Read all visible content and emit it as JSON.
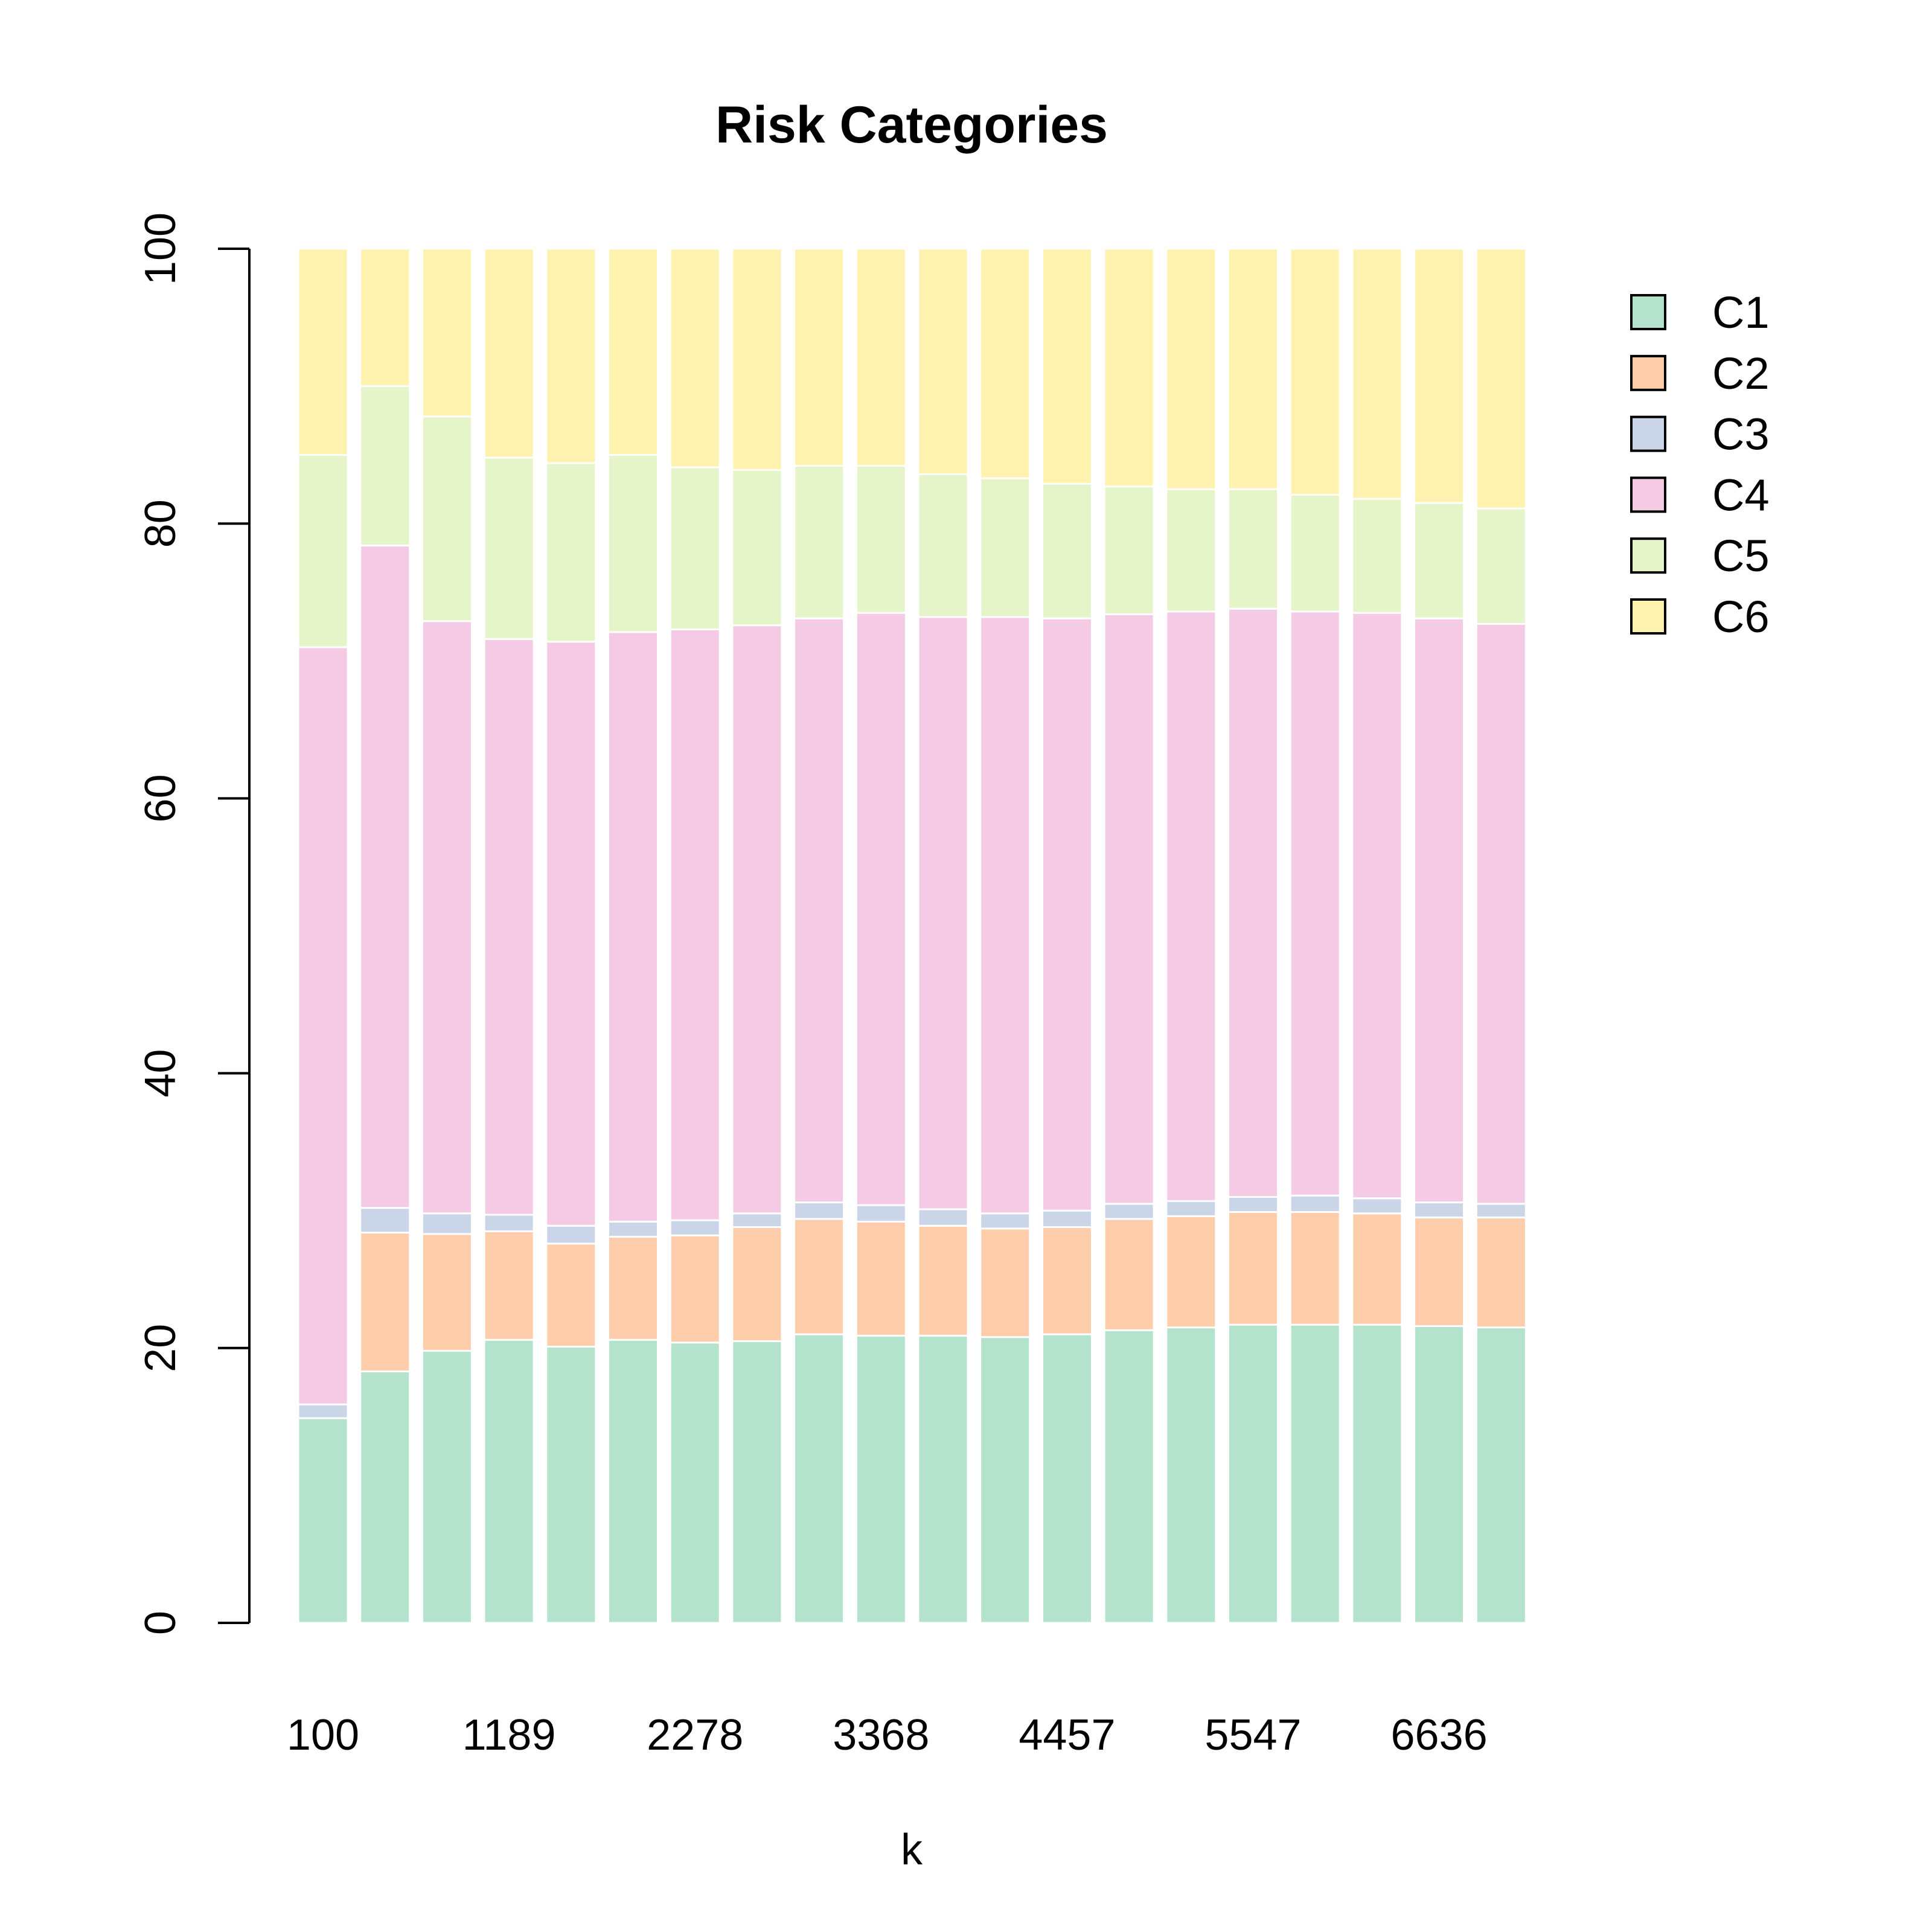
{
  "chart_data": {
    "type": "bar",
    "stacked": true,
    "title": "Risk Categories",
    "xlabel": "k",
    "ylabel": "",
    "ylim": [
      0,
      100
    ],
    "y_ticks": [
      "0",
      "20",
      "40",
      "60",
      "80",
      "100"
    ],
    "x_tick_labels": [
      "100",
      "1189",
      "2278",
      "3368",
      "4457",
      "5547",
      "6636"
    ],
    "x_tick_bar_index": [
      0,
      3,
      6,
      9,
      12,
      15,
      18
    ],
    "legend_position": "top-right",
    "series": [
      {
        "name": "C1",
        "color": "#B3E2CD",
        "values": [
          14.9,
          18.3,
          19.8,
          20.6,
          20.1,
          20.6,
          20.4,
          20.5,
          21.0,
          20.9,
          20.9,
          20.8,
          21.0,
          21.3,
          21.5,
          21.7,
          21.7,
          21.7,
          21.6,
          21.5
        ]
      },
      {
        "name": "C2",
        "color": "#FDCDAC",
        "values": [
          0.0,
          10.1,
          8.5,
          7.9,
          7.5,
          7.5,
          7.8,
          8.3,
          8.4,
          8.3,
          8.0,
          7.9,
          7.8,
          8.1,
          8.1,
          8.2,
          8.2,
          8.1,
          7.9,
          8.0
        ]
      },
      {
        "name": "C3",
        "color": "#CBD5E8",
        "values": [
          1.0,
          1.8,
          1.5,
          1.2,
          1.3,
          1.1,
          1.1,
          1.0,
          1.2,
          1.2,
          1.2,
          1.1,
          1.2,
          1.1,
          1.1,
          1.1,
          1.2,
          1.1,
          1.1,
          1.0
        ]
      },
      {
        "name": "C4",
        "color": "#F4CAE4",
        "values": [
          55.1,
          48.2,
          43.1,
          41.9,
          42.5,
          42.9,
          43.0,
          42.8,
          42.5,
          43.1,
          43.1,
          43.4,
          43.1,
          42.9,
          42.9,
          42.8,
          42.5,
          42.6,
          42.5,
          42.2
        ]
      },
      {
        "name": "C5",
        "color": "#E6F5C9",
        "values": [
          14.0,
          11.6,
          14.9,
          13.2,
          13.0,
          12.9,
          11.8,
          11.3,
          11.1,
          10.7,
          10.4,
          10.1,
          9.8,
          9.3,
          8.9,
          8.7,
          8.5,
          8.3,
          8.4,
          8.4
        ]
      },
      {
        "name": "C6",
        "color": "#FFF2AE",
        "values": [
          15.0,
          10.0,
          12.2,
          15.2,
          15.6,
          15.0,
          15.9,
          16.1,
          15.8,
          15.8,
          16.4,
          16.7,
          17.1,
          17.3,
          17.5,
          17.5,
          17.9,
          18.2,
          18.5,
          18.9
        ]
      }
    ]
  }
}
